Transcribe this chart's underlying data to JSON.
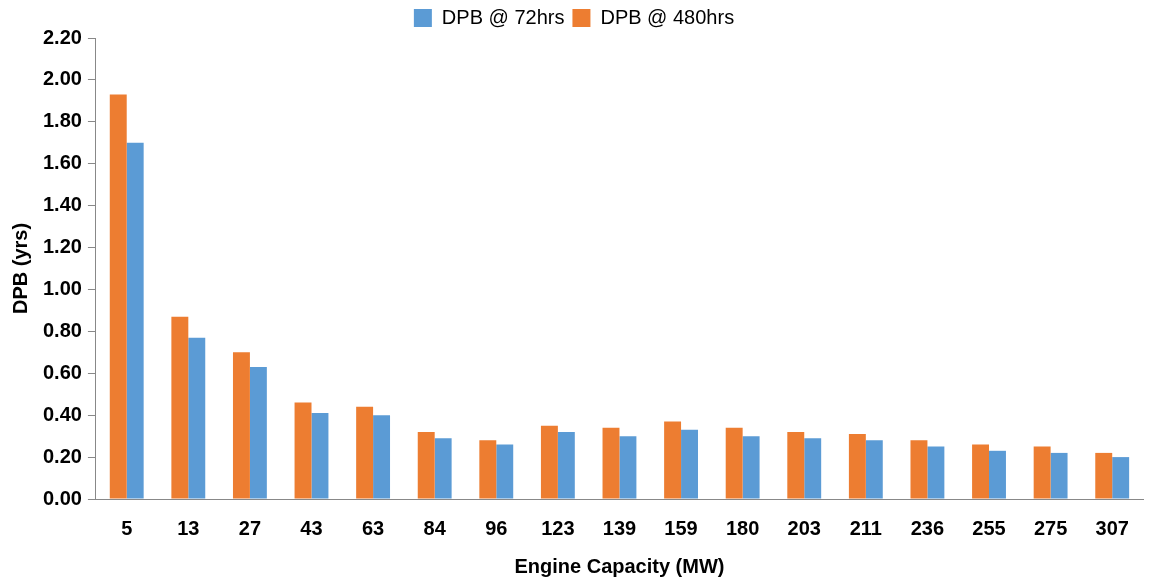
{
  "chart_data": {
    "type": "bar",
    "xlabel": "Engine Capacity (MW)",
    "ylabel": "DPB (yrs)",
    "categories": [
      "5",
      "13",
      "27",
      "43",
      "63",
      "84",
      "96",
      "123",
      "139",
      "159",
      "180",
      "203",
      "211",
      "236",
      "255",
      "275",
      "307"
    ],
    "series": [
      {
        "name": "DPB @ 480hrs",
        "color": "#ed7d31",
        "values": [
          1.93,
          0.87,
          0.7,
          0.46,
          0.44,
          0.32,
          0.28,
          0.35,
          0.34,
          0.37,
          0.34,
          0.32,
          0.31,
          0.28,
          0.26,
          0.25,
          0.22
        ]
      },
      {
        "name": "DPB @ 72hrs",
        "color": "#5b9bd5",
        "values": [
          1.7,
          0.77,
          0.63,
          0.41,
          0.4,
          0.29,
          0.26,
          0.32,
          0.3,
          0.33,
          0.3,
          0.29,
          0.28,
          0.25,
          0.23,
          0.22,
          0.2
        ]
      }
    ],
    "ylim": [
      0,
      2.2
    ],
    "yticks": [
      {
        "value": 0,
        "label": "0.00"
      },
      {
        "value": 0.2,
        "label": "0.20"
      },
      {
        "value": 0.4,
        "label": "0.40"
      },
      {
        "value": 0.6,
        "label": "0.60"
      },
      {
        "value": 0.8,
        "label": "0.80"
      },
      {
        "value": 1.0,
        "label": "1.00"
      },
      {
        "value": 1.2,
        "label": "1.20"
      },
      {
        "value": 1.4,
        "label": "1.40"
      },
      {
        "value": 1.6,
        "label": "1.60"
      },
      {
        "value": 1.8,
        "label": "1.80"
      },
      {
        "value": 2.0,
        "label": "2.00"
      },
      {
        "value": 2.2,
        "label": "2.20"
      }
    ],
    "grid": false,
    "legend": "top"
  }
}
